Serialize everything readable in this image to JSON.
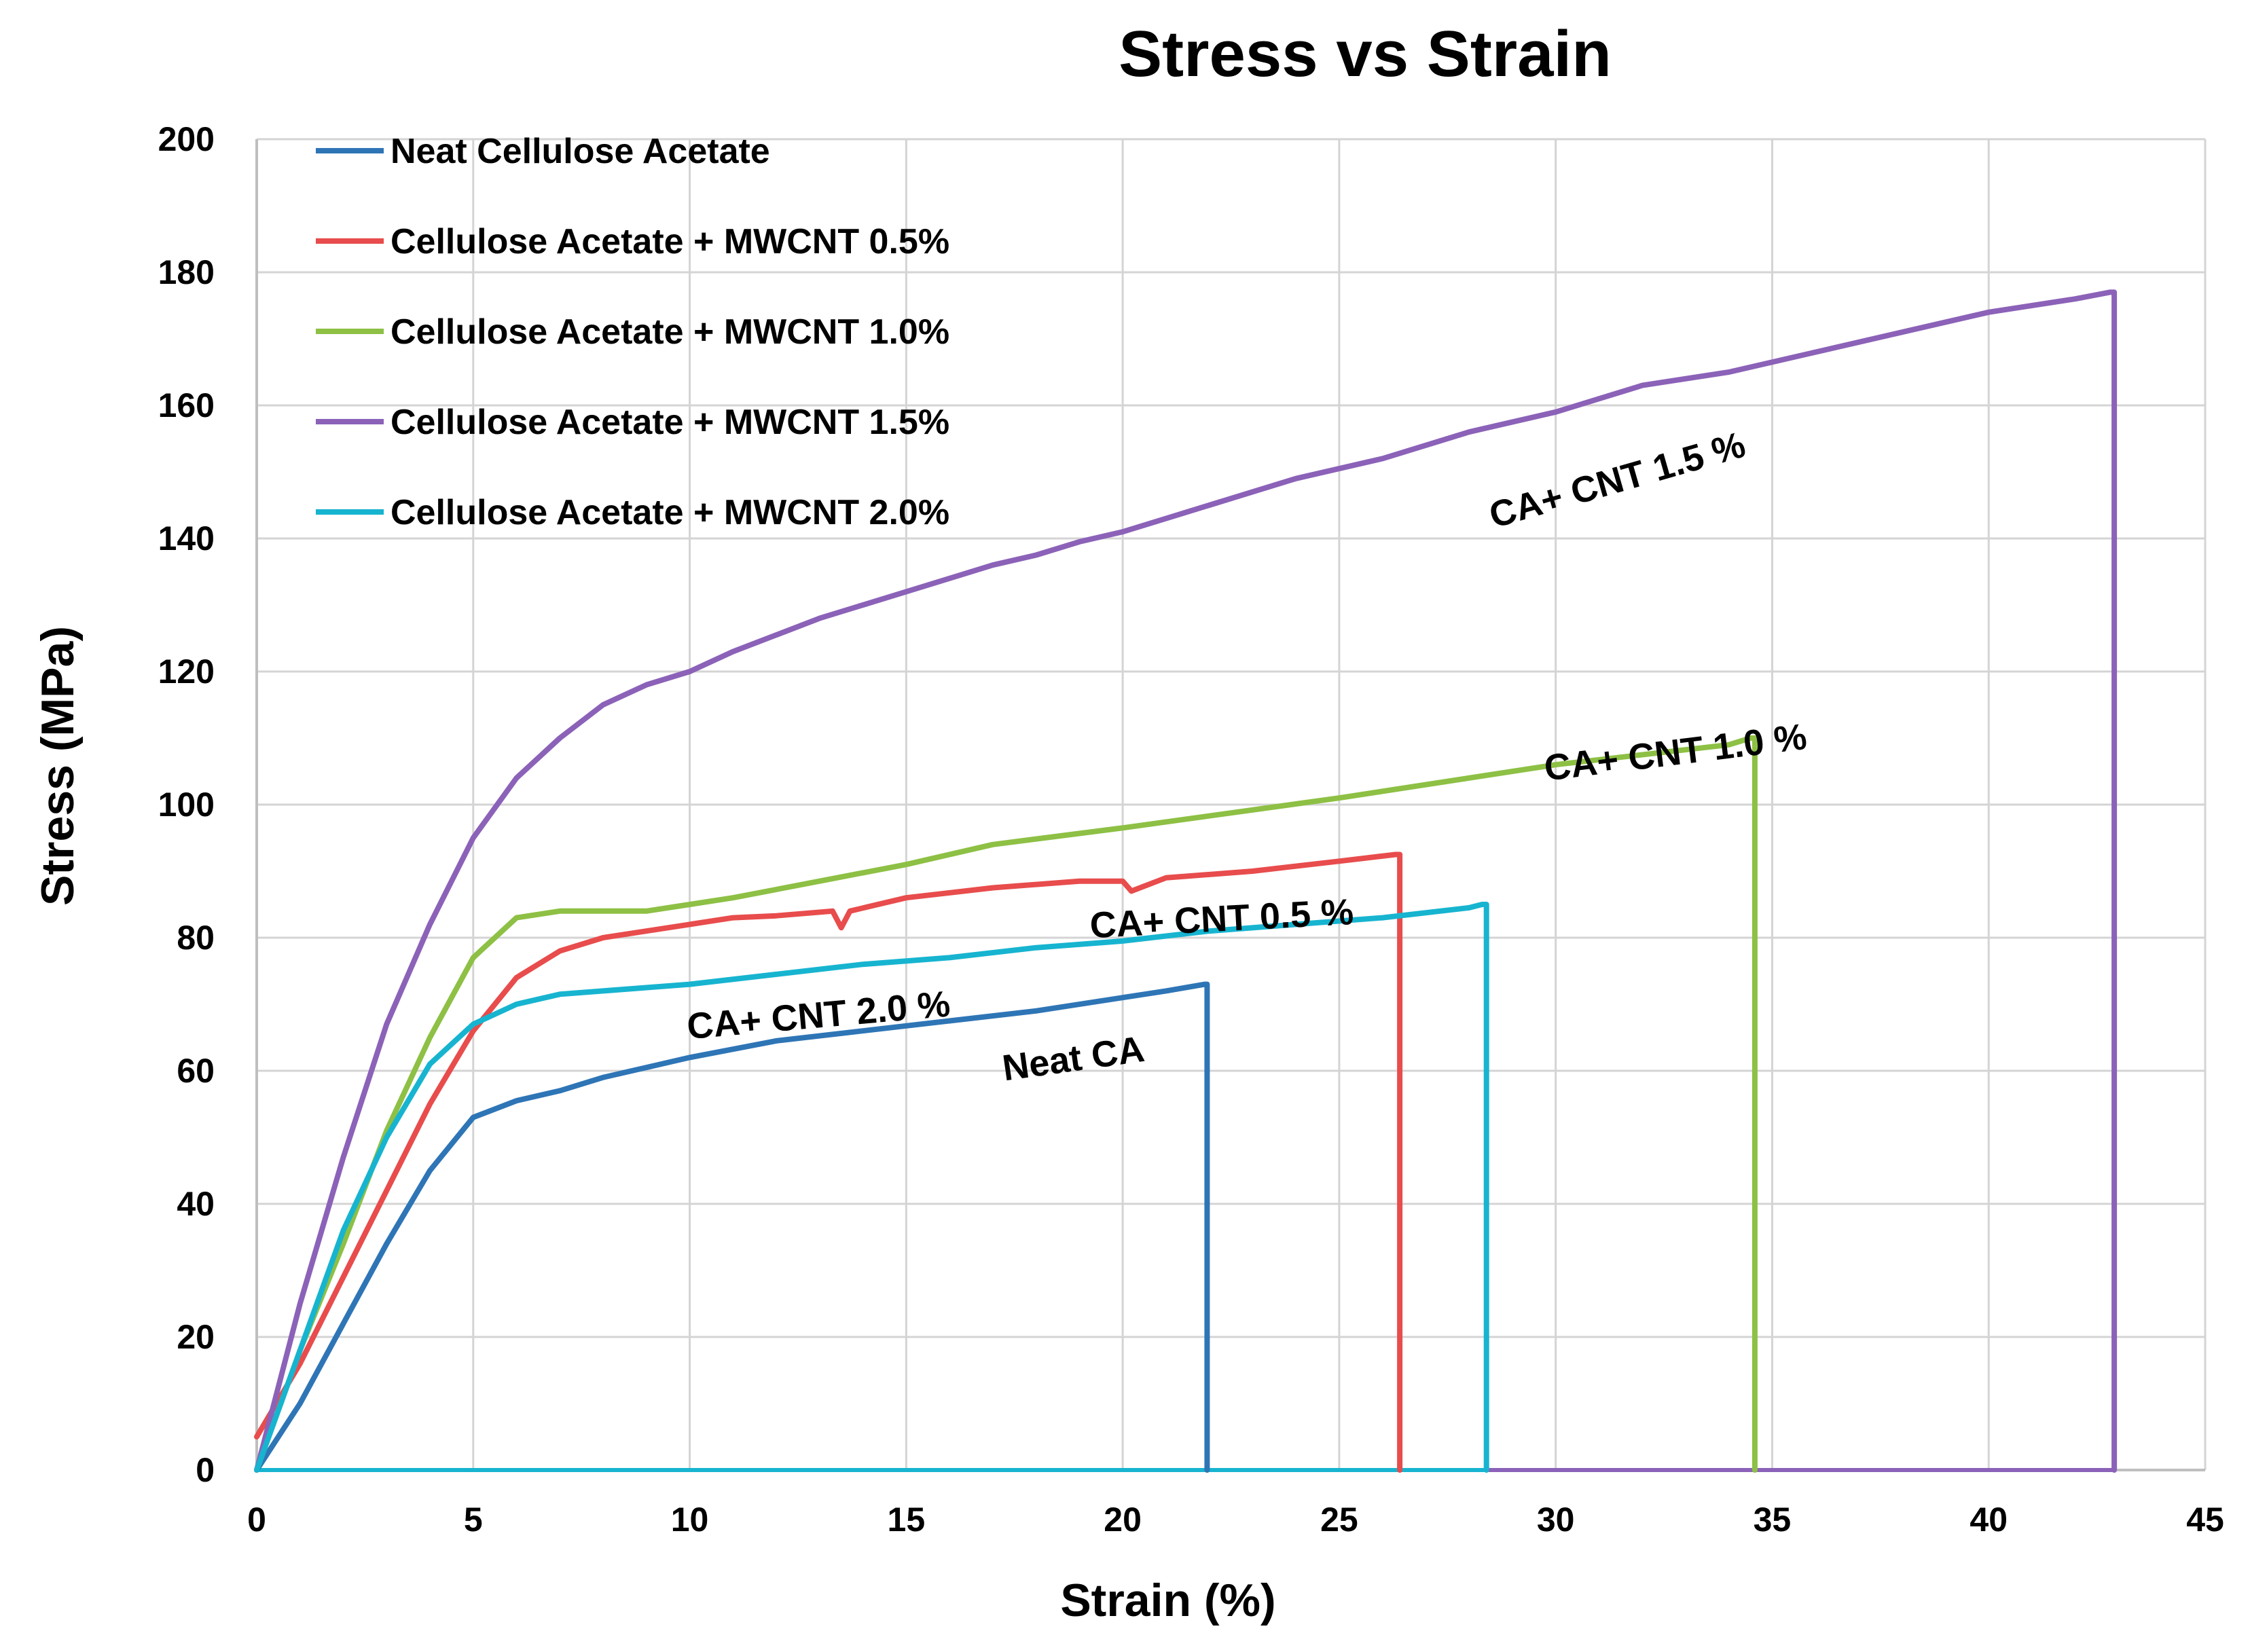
{
  "chart_data": {
    "type": "line",
    "title": "Stress vs Strain",
    "xlabel": "Strain (%)",
    "ylabel": "Stress (MPa)",
    "xlim": [
      0,
      45
    ],
    "ylim": [
      0,
      200
    ],
    "xticks": [
      0,
      5,
      10,
      15,
      20,
      25,
      30,
      35,
      40,
      45
    ],
    "yticks": [
      0,
      20,
      40,
      60,
      80,
      100,
      120,
      140,
      160,
      180,
      200
    ],
    "grid": true,
    "legend_position": "top-left",
    "series": [
      {
        "name": "Neat Cellulose Acetate",
        "color": "#2e75b6",
        "x": [
          0,
          1,
          2,
          3,
          4,
          5,
          6,
          7,
          8,
          9,
          10,
          12,
          14,
          16,
          18,
          20,
          21,
          21.9,
          21.95,
          21.95
        ],
        "y": [
          0,
          10,
          22,
          34,
          45,
          53,
          55.5,
          57,
          59,
          60.5,
          62,
          64.5,
          66,
          67.5,
          69,
          71,
          72,
          73,
          73,
          0
        ]
      },
      {
        "name": "Cellulose Acetate + MWCNT 0.5%",
        "color": "#e84c4c",
        "x": [
          0,
          1,
          2,
          3,
          4,
          5,
          6,
          7,
          8,
          9,
          10,
          11,
          12,
          13.3,
          13.5,
          13.7,
          15,
          17,
          19,
          20,
          20.2,
          21,
          23,
          25,
          26.3,
          26.4,
          26.4
        ],
        "y": [
          5,
          16,
          29,
          42,
          55,
          66,
          74,
          78,
          80,
          81,
          82,
          83,
          83.3,
          84,
          81.5,
          84,
          86,
          87.5,
          88.5,
          88.5,
          87,
          89,
          90,
          91.5,
          92.5,
          92.5,
          0
        ]
      },
      {
        "name": "Cellulose Acetate + MWCNT 1.0%",
        "color": "#8dc044",
        "x": [
          0,
          1,
          2,
          3,
          4,
          5,
          6,
          7,
          9,
          10,
          11,
          13,
          15,
          17,
          20,
          25,
          30,
          34,
          34.5,
          34.6,
          34.6
        ],
        "y": [
          0,
          18,
          34,
          51,
          65,
          77,
          83,
          84,
          84,
          85,
          86,
          88.5,
          91,
          94,
          96.5,
          101,
          106,
          109,
          110,
          110,
          0
        ]
      },
      {
        "name": "Cellulose Acetate + MWCNT 1.5%",
        "color": "#8b62b8",
        "x": [
          0,
          1,
          2,
          3,
          4,
          5,
          6,
          7,
          8,
          9,
          10,
          11,
          12,
          13,
          14,
          15,
          16,
          17,
          18,
          19,
          20,
          22,
          24,
          26,
          28,
          30,
          32,
          34,
          36,
          38,
          40,
          42,
          42.8,
          42.9,
          42.9
        ],
        "y": [
          0,
          25,
          47,
          67,
          82,
          95,
          104,
          110,
          115,
          118,
          120,
          123,
          125.5,
          128,
          130,
          132,
          134,
          136,
          137.5,
          139.5,
          141,
          145,
          149,
          152,
          156,
          159,
          163,
          165,
          168,
          171,
          174,
          176,
          177,
          177,
          0
        ]
      },
      {
        "name": "Cellulose Acetate + MWCNT 2.0%",
        "color": "#17b4d0",
        "x": [
          0,
          1,
          2,
          3,
          4,
          5,
          6,
          7,
          8,
          9,
          10,
          12,
          14,
          16,
          18,
          20,
          22,
          24,
          26,
          28,
          28.3,
          28.4,
          28.4
        ],
        "y": [
          0,
          18,
          36,
          50,
          61,
          67,
          70,
          71.5,
          72,
          72.5,
          73,
          74.5,
          76,
          77,
          78.5,
          79.5,
          81,
          82,
          83,
          84.5,
          85,
          85,
          0
        ]
      }
    ],
    "annotations": [
      {
        "text": "CA+ CNT 1.5 %",
        "x": 31.5,
        "y": 147,
        "rotation": -16
      },
      {
        "text": "CA+ CNT 1.0 %",
        "x": 32.8,
        "y": 106,
        "rotation": -7
      },
      {
        "text": "CA+ CNT 0.5 %",
        "x": 22.3,
        "y": 81,
        "rotation": -3
      },
      {
        "text": "CA+ CNT 2.0 %",
        "x": 13,
        "y": 66.5,
        "rotation": -5
      },
      {
        "text": "Neat CA",
        "x": 18.9,
        "y": 60,
        "rotation": -8
      }
    ]
  }
}
